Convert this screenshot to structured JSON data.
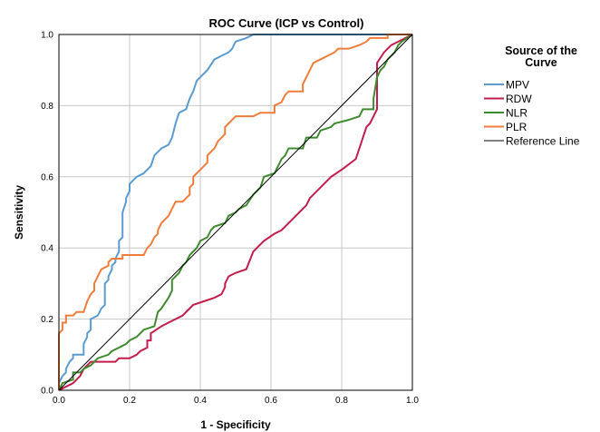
{
  "chart_data": {
    "type": "line",
    "title": "ROC Curve (ICP vs Control)",
    "xlabel": "1 - Specificity",
    "ylabel": "Sensitivity",
    "xlim": [
      0.0,
      1.0
    ],
    "ylim": [
      0.0,
      1.0
    ],
    "x_ticks": [
      "0.0",
      "0.2",
      "0.4",
      "0.6",
      "0.8",
      "1.0"
    ],
    "y_ticks": [
      "0.0",
      "0.2",
      "0.4",
      "0.6",
      "0.8",
      "1.0"
    ],
    "grid": true,
    "legend": {
      "title": "Source of the Curve",
      "placement": "right"
    },
    "series": [
      {
        "name": "MPV",
        "color": "#5b9bd0",
        "points": [
          [
            0,
            0
          ],
          [
            0,
            0.02
          ],
          [
            0.01,
            0.04
          ],
          [
            0.02,
            0.05
          ],
          [
            0.02,
            0.06
          ],
          [
            0.03,
            0.08
          ],
          [
            0.04,
            0.09
          ],
          [
            0.04,
            0.1
          ],
          [
            0.07,
            0.1
          ],
          [
            0.07,
            0.13
          ],
          [
            0.08,
            0.15
          ],
          [
            0.08,
            0.16
          ],
          [
            0.09,
            0.17
          ],
          [
            0.09,
            0.2
          ],
          [
            0.11,
            0.21
          ],
          [
            0.12,
            0.23
          ],
          [
            0.13,
            0.24
          ],
          [
            0.13,
            0.3
          ],
          [
            0.14,
            0.31
          ],
          [
            0.14,
            0.32
          ],
          [
            0.15,
            0.34
          ],
          [
            0.15,
            0.35
          ],
          [
            0.16,
            0.36
          ],
          [
            0.16,
            0.37
          ],
          [
            0.17,
            0.39
          ],
          [
            0.17,
            0.42
          ],
          [
            0.18,
            0.43
          ],
          [
            0.18,
            0.5
          ],
          [
            0.19,
            0.53
          ],
          [
            0.19,
            0.54
          ],
          [
            0.2,
            0.56
          ],
          [
            0.2,
            0.58
          ],
          [
            0.21,
            0.59
          ],
          [
            0.22,
            0.6
          ],
          [
            0.24,
            0.61
          ],
          [
            0.26,
            0.63
          ],
          [
            0.27,
            0.66
          ],
          [
            0.29,
            0.68
          ],
          [
            0.31,
            0.69
          ],
          [
            0.32,
            0.71
          ],
          [
            0.33,
            0.75
          ],
          [
            0.34,
            0.78
          ],
          [
            0.36,
            0.79
          ],
          [
            0.37,
            0.82
          ],
          [
            0.38,
            0.84
          ],
          [
            0.39,
            0.87
          ],
          [
            0.41,
            0.89
          ],
          [
            0.42,
            0.9
          ],
          [
            0.44,
            0.93
          ],
          [
            0.46,
            0.94
          ],
          [
            0.48,
            0.95
          ],
          [
            0.49,
            0.96
          ],
          [
            0.5,
            0.98
          ],
          [
            0.53,
            0.99
          ],
          [
            0.55,
            1.0
          ],
          [
            1.0,
            1.0
          ]
        ]
      },
      {
        "name": "RDW",
        "color": "#c21d4b",
        "points": [
          [
            0,
            0
          ],
          [
            0.02,
            0.01
          ],
          [
            0.04,
            0.02
          ],
          [
            0.06,
            0.04
          ],
          [
            0.07,
            0.06
          ],
          [
            0.08,
            0.07
          ],
          [
            0.09,
            0.08
          ],
          [
            0.16,
            0.08
          ],
          [
            0.17,
            0.09
          ],
          [
            0.2,
            0.09
          ],
          [
            0.22,
            0.1
          ],
          [
            0.23,
            0.11
          ],
          [
            0.25,
            0.12
          ],
          [
            0.25,
            0.14
          ],
          [
            0.26,
            0.14
          ],
          [
            0.26,
            0.16
          ],
          [
            0.29,
            0.18
          ],
          [
            0.31,
            0.19
          ],
          [
            0.33,
            0.2
          ],
          [
            0.35,
            0.21
          ],
          [
            0.36,
            0.22
          ],
          [
            0.38,
            0.24
          ],
          [
            0.41,
            0.25
          ],
          [
            0.44,
            0.26
          ],
          [
            0.46,
            0.27
          ],
          [
            0.47,
            0.29
          ],
          [
            0.47,
            0.3
          ],
          [
            0.48,
            0.32
          ],
          [
            0.5,
            0.33
          ],
          [
            0.53,
            0.34
          ],
          [
            0.55,
            0.39
          ],
          [
            0.56,
            0.4
          ],
          [
            0.58,
            0.42
          ],
          [
            0.61,
            0.44
          ],
          [
            0.63,
            0.45
          ],
          [
            0.67,
            0.49
          ],
          [
            0.7,
            0.52
          ],
          [
            0.71,
            0.54
          ],
          [
            0.74,
            0.57
          ],
          [
            0.77,
            0.6
          ],
          [
            0.8,
            0.62
          ],
          [
            0.84,
            0.65
          ],
          [
            0.86,
            0.71
          ],
          [
            0.87,
            0.74
          ],
          [
            0.88,
            0.75
          ],
          [
            0.89,
            0.77
          ],
          [
            0.9,
            0.79
          ],
          [
            0.9,
            0.92
          ],
          [
            0.92,
            0.95
          ],
          [
            0.94,
            0.97
          ],
          [
            0.96,
            0.98
          ],
          [
            1.0,
            1.0
          ]
        ]
      },
      {
        "name": "NLR",
        "color": "#3f8a2e",
        "points": [
          [
            0,
            0
          ],
          [
            0.01,
            0.02
          ],
          [
            0.04,
            0.03
          ],
          [
            0.04,
            0.05
          ],
          [
            0.06,
            0.05
          ],
          [
            0.07,
            0.06
          ],
          [
            0.09,
            0.07
          ],
          [
            0.1,
            0.08
          ],
          [
            0.11,
            0.09
          ],
          [
            0.14,
            0.1
          ],
          [
            0.15,
            0.11
          ],
          [
            0.17,
            0.12
          ],
          [
            0.19,
            0.13
          ],
          [
            0.2,
            0.14
          ],
          [
            0.22,
            0.15
          ],
          [
            0.24,
            0.17
          ],
          [
            0.27,
            0.18
          ],
          [
            0.28,
            0.22
          ],
          [
            0.29,
            0.23
          ],
          [
            0.31,
            0.26
          ],
          [
            0.32,
            0.28
          ],
          [
            0.32,
            0.31
          ],
          [
            0.34,
            0.33
          ],
          [
            0.35,
            0.35
          ],
          [
            0.36,
            0.36
          ],
          [
            0.37,
            0.38
          ],
          [
            0.38,
            0.39
          ],
          [
            0.39,
            0.4
          ],
          [
            0.4,
            0.42
          ],
          [
            0.42,
            0.43
          ],
          [
            0.43,
            0.45
          ],
          [
            0.44,
            0.46
          ],
          [
            0.47,
            0.47
          ],
          [
            0.48,
            0.49
          ],
          [
            0.5,
            0.5
          ],
          [
            0.51,
            0.51
          ],
          [
            0.53,
            0.52
          ],
          [
            0.55,
            0.55
          ],
          [
            0.57,
            0.57
          ],
          [
            0.58,
            0.6
          ],
          [
            0.61,
            0.61
          ],
          [
            0.62,
            0.63
          ],
          [
            0.63,
            0.65
          ],
          [
            0.64,
            0.66
          ],
          [
            0.65,
            0.68
          ],
          [
            0.69,
            0.68
          ],
          [
            0.7,
            0.71
          ],
          [
            0.73,
            0.71
          ],
          [
            0.74,
            0.73
          ],
          [
            0.77,
            0.74
          ],
          [
            0.78,
            0.75
          ],
          [
            0.82,
            0.76
          ],
          [
            0.85,
            0.77
          ],
          [
            0.86,
            0.79
          ],
          [
            0.89,
            0.79
          ],
          [
            0.89,
            0.82
          ],
          [
            0.9,
            0.88
          ],
          [
            0.91,
            0.9
          ],
          [
            0.92,
            0.91
          ],
          [
            0.93,
            0.93
          ],
          [
            0.95,
            0.95
          ],
          [
            0.96,
            0.97
          ],
          [
            0.97,
            0.98
          ],
          [
            1.0,
            1.0
          ]
        ]
      },
      {
        "name": "PLR",
        "color": "#ee7d3c",
        "points": [
          [
            0,
            0
          ],
          [
            0,
            0.16
          ],
          [
            0.01,
            0.17
          ],
          [
            0.01,
            0.19
          ],
          [
            0.02,
            0.19
          ],
          [
            0.02,
            0.21
          ],
          [
            0.04,
            0.21
          ],
          [
            0.05,
            0.22
          ],
          [
            0.07,
            0.22
          ],
          [
            0.08,
            0.25
          ],
          [
            0.09,
            0.27
          ],
          [
            0.1,
            0.28
          ],
          [
            0.1,
            0.3
          ],
          [
            0.11,
            0.32
          ],
          [
            0.12,
            0.34
          ],
          [
            0.14,
            0.35
          ],
          [
            0.14,
            0.36
          ],
          [
            0.15,
            0.37
          ],
          [
            0.18,
            0.37
          ],
          [
            0.18,
            0.38
          ],
          [
            0.24,
            0.38
          ],
          [
            0.25,
            0.4
          ],
          [
            0.26,
            0.41
          ],
          [
            0.27,
            0.43
          ],
          [
            0.28,
            0.44
          ],
          [
            0.28,
            0.45
          ],
          [
            0.29,
            0.47
          ],
          [
            0.3,
            0.48
          ],
          [
            0.31,
            0.49
          ],
          [
            0.32,
            0.51
          ],
          [
            0.33,
            0.53
          ],
          [
            0.35,
            0.53
          ],
          [
            0.36,
            0.54
          ],
          [
            0.37,
            0.55
          ],
          [
            0.37,
            0.57
          ],
          [
            0.38,
            0.58
          ],
          [
            0.38,
            0.6
          ],
          [
            0.39,
            0.61
          ],
          [
            0.4,
            0.62
          ],
          [
            0.41,
            0.63
          ],
          [
            0.42,
            0.64
          ],
          [
            0.42,
            0.66
          ],
          [
            0.44,
            0.68
          ],
          [
            0.45,
            0.7
          ],
          [
            0.47,
            0.72
          ],
          [
            0.47,
            0.74
          ],
          [
            0.48,
            0.75
          ],
          [
            0.49,
            0.76
          ],
          [
            0.5,
            0.77
          ],
          [
            0.55,
            0.77
          ],
          [
            0.57,
            0.78
          ],
          [
            0.61,
            0.78
          ],
          [
            0.61,
            0.8
          ],
          [
            0.63,
            0.81
          ],
          [
            0.64,
            0.83
          ],
          [
            0.65,
            0.84
          ],
          [
            0.69,
            0.84
          ],
          [
            0.69,
            0.86
          ],
          [
            0.7,
            0.88
          ],
          [
            0.71,
            0.9
          ],
          [
            0.72,
            0.92
          ],
          [
            0.74,
            0.93
          ],
          [
            0.76,
            0.94
          ],
          [
            0.78,
            0.95
          ],
          [
            0.79,
            0.96
          ],
          [
            0.82,
            0.96
          ],
          [
            0.85,
            0.97
          ],
          [
            0.87,
            0.98
          ],
          [
            0.88,
            0.99
          ],
          [
            0.93,
            0.99
          ],
          [
            0.93,
            1.0
          ],
          [
            1.0,
            1.0
          ]
        ]
      },
      {
        "name": "Reference Line",
        "color": "#000000",
        "points": [
          [
            0,
            0
          ],
          [
            1,
            1
          ]
        ]
      }
    ]
  }
}
